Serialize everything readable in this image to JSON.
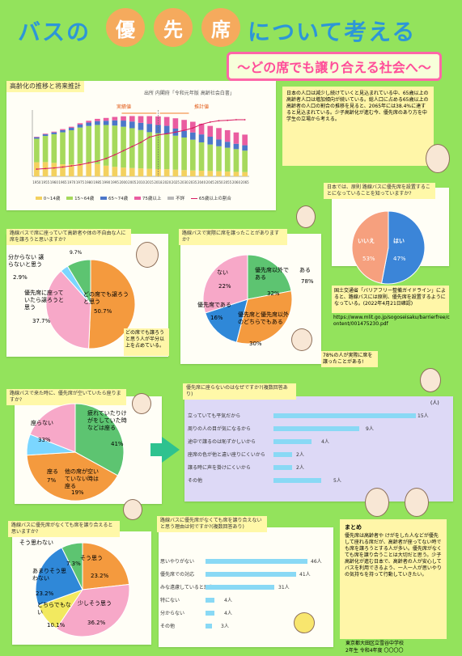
{
  "poster": {
    "title": "バスの優先席について考える",
    "subtitle": "～どの席でも譲り合える社会へ～"
  },
  "aging_chart": {
    "title": "高齢化の推移と将来推計",
    "source": "出所 内閣府「令和元年版 高齢社会白書」",
    "annotation_left": "実績値",
    "annotation_right": "推計値",
    "legend": [
      "0~14歳",
      "15~64歳",
      "65~74歳",
      "75歳以上",
      "不詳",
      "65歳以上の割合"
    ],
    "legend_colors": [
      "#f3d15f",
      "#a6d95c",
      "#4c77c9",
      "#ea5da0",
      "#b9b9b9",
      "#d81b60"
    ],
    "x_tick_labels": [
      "1950",
      "1955",
      "1960",
      "1965",
      "1970",
      "1975",
      "1980",
      "1985",
      "1990",
      "1995",
      "2000",
      "2005",
      "2010",
      "2015",
      "2018",
      "2020",
      "2025",
      "2030",
      "2035",
      "2040",
      "2045",
      "2050",
      "2055",
      "2060",
      "2065"
    ],
    "chart_data": {
      "type": "bar",
      "categories": [
        "1950",
        "1955",
        "1960",
        "1965",
        "1970",
        "1975",
        "1980",
        "1985",
        "1990",
        "1995",
        "2000",
        "2005",
        "2010",
        "2015",
        "2018",
        "2020",
        "2025",
        "2030",
        "2035",
        "2040",
        "2045",
        "2050",
        "2055",
        "2060",
        "2065"
      ],
      "series": [
        {
          "name": "0~14歳",
          "values": [
            2979,
            3012,
            2843,
            2553,
            2515,
            2722,
            2751,
            2603,
            2249,
            2001,
            1847,
            1752,
            1680,
            1595,
            1542,
            1507,
            1407,
            1321,
            1246,
            1194,
            1138,
            1077,
            1012,
            951,
            898
          ]
        },
        {
          "name": "15~64歳",
          "values": [
            4966,
            5517,
            6047,
            6744,
            7212,
            7581,
            7883,
            8251,
            8590,
            8716,
            8622,
            8409,
            8103,
            7728,
            7545,
            7406,
            7170,
            6875,
            6494,
            5978,
            5584,
            5275,
            5028,
            4793,
            4529
          ]
        },
        {
          "name": "65~74歳",
          "values": [
            309,
            338,
            382,
            450,
            520,
            623,
            728,
            812,
            893,
            1107,
            1301,
            1407,
            1517,
            1755,
            1760,
            1747,
            1497,
            1428,
            1522,
            1681,
            1643,
            1424,
            1258,
            1133,
            1133
          ]
        },
        {
          "name": "75歳以上",
          "values": [
            106,
            139,
            163,
            224,
            221,
            284,
            366,
            471,
            597,
            717,
            901,
            1160,
            1407,
            1632,
            1798,
            1872,
            2180,
            2288,
            2260,
            2239,
            2277,
            2417,
            2446,
            2387,
            2248
          ]
        }
      ],
      "line_series": {
        "name": "65歳以上の割合",
        "values": [
          4.9,
          5.3,
          5.7,
          6.3,
          7.1,
          7.9,
          9.1,
          10.3,
          12.1,
          14.6,
          17.4,
          20.2,
          23.0,
          26.6,
          28.1,
          28.9,
          30.0,
          31.2,
          32.8,
          35.3,
          36.8,
          37.7,
          38.0,
          38.4,
          38.4
        ]
      },
      "ylim_left": [
        0,
        14000
      ],
      "ylim_right": [
        0,
        45
      ]
    }
  },
  "intro_note": "日本の人口は減少し続けていくと見込まれている中、65歳以上の高齢者人口は増加傾向が続いている。総人口に占める65歳以上の高齢者の人口の割合の推移を見ると、2065年には38.4%に達すると見込まれている。少子高齢化が進む今、優先席のあり方を中学生の立場から考える。",
  "question1": {
    "tab": "日本では、原則 路線バスに優先席を設置することになっていることを知っていますか?",
    "labels": [
      "いいえ",
      "はい"
    ],
    "values": [
      53,
      47
    ],
    "note": "国土交通省「バリアフリー整備ガイドライン」によると、路線バスには原則、優先席を設置するようになっている。(2022年4月21日確認)",
    "url": "https://www.mlit.go.jp/sogoseisaku/barrierfree/content/001475230.pdf",
    "colors": [
      "#3b85d8",
      "#f6a07e"
    ]
  },
  "question2": {
    "tab": "路線バスで席に座っていて高齢者や体の不自由な人に席を譲ろうと思いますか?",
    "labels": [
      "どの席でも譲ろうと思う",
      "優先席に座っていたら譲ろうと思う",
      "分からない 譲らないと思う"
    ],
    "values": [
      50.7,
      37.7,
      2.9
    ],
    "value_labels": [
      "50.7%",
      "37.7%",
      "2.9%"
    ],
    "extra_label": "9.7%",
    "note": "どの席でも譲ろうと思う人が半分以上を占めている。",
    "colors": [
      "#f49a3e",
      "#f7a8c8",
      "#7bd6ff",
      "#5dc471"
    ]
  },
  "question3": {
    "tab": "路線バスで実際に席を譲ったことがありますか?",
    "labels": [
      "ない",
      "優先席以外である",
      "ある",
      "優先席である",
      "優先席と優先席以外のどちらでもある"
    ],
    "values": [
      22,
      32,
      78,
      16,
      30
    ],
    "value_labels": [
      "22%",
      "32%",
      "78%",
      "16%",
      "30%"
    ],
    "note": "78%の人が実際に席を譲ったことがある!",
    "colors": [
      "#5dc471",
      "#f49a3e",
      "#7bd6ff",
      "#2f88d8",
      "#f7a8c8"
    ]
  },
  "question4": {
    "tab": "路線バスで来た時に、優先席が空いていたら座りますか?",
    "labels": [
      "座らない",
      "疲れていたりけがをしていた時などは座る",
      "座る",
      "他の席が空いていない時は座る"
    ],
    "values": [
      33,
      41,
      7,
      19
    ],
    "value_labels": [
      "33%",
      "41%",
      "7%",
      "19%"
    ],
    "colors": [
      "#5dc471",
      "#f49a3e",
      "#7bd6ff",
      "#f7a8c8"
    ]
  },
  "question5": {
    "tab": "優先席に座らないのはなぜですか?(複数回答あり)",
    "rows": [
      {
        "label": "立っていても平気だから",
        "value": 15,
        "value_label": "15人"
      },
      {
        "label": "周りの人の目が気になるから",
        "value": 9,
        "value_label": "9人"
      },
      {
        "label": "途中で譲るのは恥ずかしいから",
        "value": 4,
        "value_label": "4人"
      },
      {
        "label": "座席の色が他と違い座りにくいから",
        "value": 2,
        "value_label": "2人"
      },
      {
        "label": "譲る時に声を掛けにくいから",
        "value": 2,
        "value_label": "2人"
      },
      {
        "label": "その他",
        "value": 5,
        "value_label": "5人"
      }
    ],
    "axis_label": "(人)"
  },
  "question6": {
    "tab": "路線バスに優先席がなくても席を譲り合えると思いますか?",
    "labels": [
      "そう思う",
      "少しそう思う",
      "どちらでもない",
      "あまりそう思わない",
      "そう思わない"
    ],
    "values": [
      23.2,
      36.2,
      10.1,
      23.2,
      7.3
    ],
    "value_labels": [
      "23.2%",
      "36.2%",
      "10.1%",
      "23.2%",
      "7.3%"
    ],
    "colors": [
      "#f49a3e",
      "#f7a8c8",
      "#f2e95f",
      "#2f88d8",
      "#5dc471"
    ]
  },
  "question7": {
    "tab": "路線バスに優先席がなくても席を譲り合えないと思う理由は何ですか?(複数回答あり)",
    "rows": [
      {
        "label": "思いやりがない",
        "value": 46,
        "value_label": "46人"
      },
      {
        "label": "優先席での対応",
        "value": 41,
        "value_label": "41人"
      },
      {
        "label": "みな遠慮していると思う",
        "value": 31,
        "value_label": "31人"
      },
      {
        "label": "特にない",
        "value": 4,
        "value_label": "4人"
      },
      {
        "label": "分からない",
        "value": 4,
        "value_label": "4人"
      },
      {
        "label": "その他",
        "value": 3,
        "value_label": "3人"
      }
    ]
  },
  "summary": {
    "title": "まとめ",
    "text": "優先席は高齢者や けがをした人などが優先して座れる席だが、高齢者が座ってない時でも席を譲ろうとする人が多い。優先席がなくても席を譲り合うことは大切だと思う。少子高齢化が進む日本で、高齢者の人が安心してバスを利用できるよう、一人一人が思いやりの気持ちを持って行動していきたい。",
    "footer1": "東京都大田区立雪谷中学校",
    "footer2": "2年生 令和4年度 〇〇〇〇"
  }
}
